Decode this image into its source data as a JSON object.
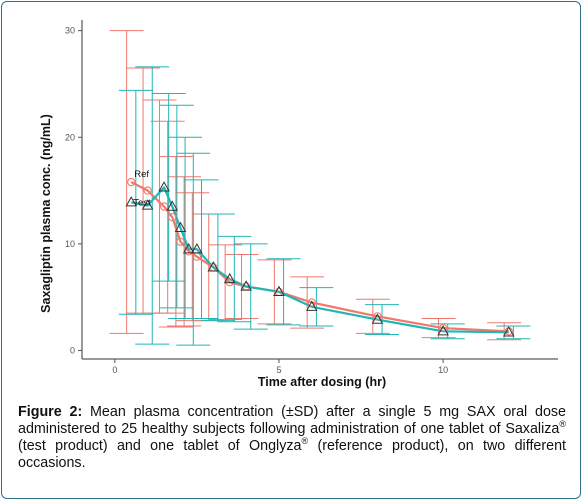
{
  "chart_data": {
    "type": "line",
    "ylabel": "Saxagliptin plasma conc. (ng/mL)",
    "xlabel": "Time after dosing (hr)",
    "xlim": [
      -1,
      13.5
    ],
    "ylim": [
      -0.8,
      31
    ],
    "x_ticks": [
      0,
      5,
      10
    ],
    "y_ticks": [
      0,
      10,
      20,
      30
    ],
    "grid": false,
    "series": [
      {
        "name": "Ref",
        "color": "#f0786e",
        "marker": "circle",
        "x": [
          0.5,
          1,
          1.5,
          1.75,
          2,
          2.25,
          2.5,
          3,
          3.5,
          4,
          5,
          6,
          8,
          10,
          12
        ],
        "y": [
          15.8,
          15.0,
          13.5,
          12.5,
          10.2,
          9.3,
          8.8,
          7.8,
          6.4,
          6.0,
          5.5,
          4.5,
          3.2,
          2.1,
          1.8
        ],
        "sd": [
          14.2,
          11.5,
          10.0,
          9.0,
          8.0,
          7.0,
          6.0,
          5.0,
          3.5,
          3.0,
          3.0,
          2.4,
          1.6,
          0.9,
          0.8
        ]
      },
      {
        "name": "Test",
        "color": "#1fb6b6",
        "marker": "triangle",
        "x": [
          0.5,
          1,
          1.5,
          1.75,
          2,
          2.25,
          2.5,
          3,
          3.5,
          4,
          5,
          6,
          8,
          10,
          12
        ],
        "y": [
          13.9,
          13.6,
          15.3,
          13.5,
          11.5,
          9.5,
          9.5,
          7.8,
          6.7,
          6.0,
          5.5,
          4.1,
          2.9,
          1.8,
          1.7
        ],
        "sd": [
          10.5,
          13.0,
          8.8,
          9.5,
          8.5,
          9.0,
          6.5,
          5.0,
          4.0,
          4.0,
          3.1,
          1.8,
          1.4,
          0.7,
          0.6
        ]
      }
    ],
    "annotations": [
      "Ref",
      "Test"
    ]
  },
  "caption": {
    "label": "Figure 2:",
    "p1": " Mean plasma concentration (±SD) after a single 5 mg SAX oral dose administered to 25 healthy subjects following administration of one tablet of Saxaliza",
    "reg1": "®",
    "p2": " (test product) and one tablet of Onglyza",
    "reg2": "®",
    "p3": " (reference product), on two different occasions."
  }
}
